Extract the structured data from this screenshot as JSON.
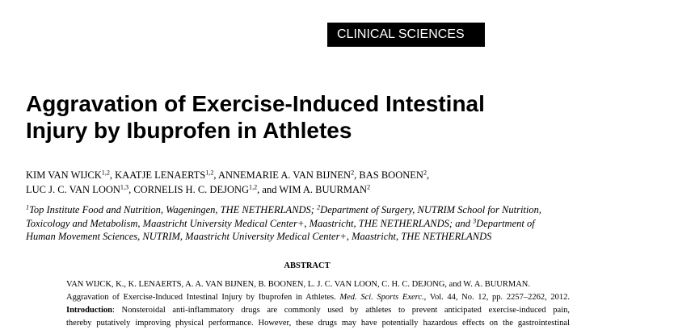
{
  "section_label": "CLINICAL SCIENCES",
  "title": {
    "lines": [
      "Aggravation of Exercise-Induced Intestinal",
      "Injury by Ibuprofen in Athletes"
    ]
  },
  "authors": {
    "lines": [
      [
        {
          "text": "KIM VAN WIJCK",
          "sup": "1,2"
        },
        {
          "text": ", KAATJE LENAERTS",
          "sup": "1,2"
        },
        {
          "text": ", ANNEMARIE A. VAN BIJNEN",
          "sup": "2"
        },
        {
          "text": ", BAS BOONEN",
          "sup": "2"
        },
        {
          "text": ","
        }
      ],
      [
        {
          "text": "LUC J. C. VAN LOON",
          "sup": "1,3"
        },
        {
          "text": ", CORNELIS H. C. DEJONG",
          "sup": "1,2"
        },
        {
          "text": ", and WIM A. BUURMAN",
          "sup": "2"
        }
      ]
    ]
  },
  "affiliations": {
    "lines": [
      [
        {
          "sup": "1"
        },
        {
          "text": "Top Institute Food and Nutrition, Wageningen, THE NETHERLANDS; "
        },
        {
          "sup": "2"
        },
        {
          "text": "Department of Surgery, NUTRIM School for Nutrition,"
        }
      ],
      [
        {
          "text": "Toxicology and Metabolism, Maastricht University Medical Center+, Maastricht, THE NETHERLANDS; and "
        },
        {
          "sup": "3"
        },
        {
          "text": "Department of"
        }
      ],
      [
        {
          "text": "Human Movement Sciences, NUTRIM, Maastricht University Medical Center+, Maastricht, THE NETHERLANDS"
        }
      ]
    ]
  },
  "abstract": {
    "heading": "ABSTRACT",
    "lines": [
      [
        {
          "text": "VAN WIJCK, K., K. LENAERTS, A. A. VAN BIJNEN, B. BOONEN, L. J. C. VAN LOON, C. H. C. DEJONG, and W. A. BUURMAN."
        }
      ],
      [
        {
          "text": "Aggravation of Exercise-Induced Intestinal Injury by Ibuprofen in Athletes. "
        },
        {
          "text": "Med. Sci. Sports Exerc.",
          "style": "italic"
        },
        {
          "text": ", Vol. 44, No. 12, pp. 2257–2262, 2012."
        }
      ],
      [
        {
          "text": "Introduction",
          "style": "bold"
        },
        {
          "text": ": Nonsteroidal anti-inflammatory drugs are commonly used by athletes to prevent anticipated exercise-induced pain,"
        }
      ],
      [
        {
          "text": "thereby putatively improving physical performance. However, these drugs may have potentially hazardous effects on the gastrointestinal"
        }
      ]
    ]
  }
}
